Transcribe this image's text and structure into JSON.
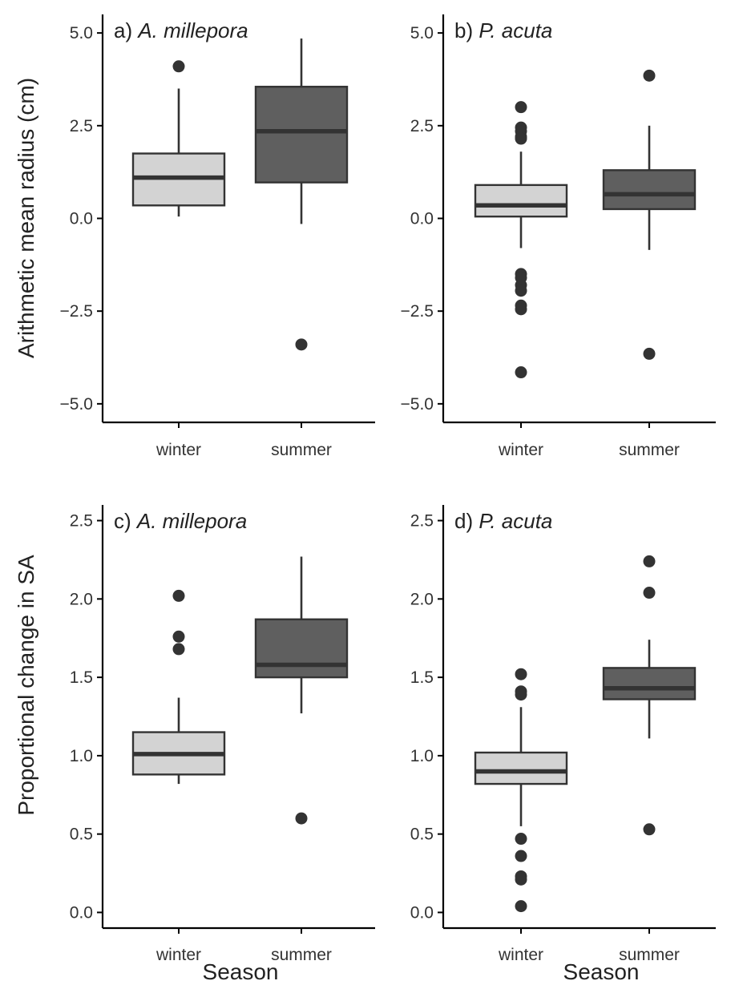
{
  "figure": {
    "ylabel_top": "Arithmetic mean radius (cm)",
    "ylabel_bottom": "Proportional change in SA",
    "xlabel": "Season"
  },
  "colors": {
    "winter": "#d3d3d3",
    "summer": "#5f5f5f"
  },
  "chart_data": [
    {
      "type": "box",
      "panel_label": "a)",
      "species": "A. millepora",
      "categories": [
        "winter",
        "summer"
      ],
      "ylim": [
        -5.5,
        5.5
      ],
      "yticks": [
        5.0,
        2.5,
        0.0,
        -2.5,
        -5.0
      ],
      "tick_labels": [
        "5.0",
        "2.5",
        "0.0",
        "−2.5",
        "−5.0"
      ],
      "boxes": [
        {
          "category": "winter",
          "whisker_low": 0.05,
          "q1": 0.35,
          "median": 1.1,
          "q3": 1.75,
          "whisker_high": 3.5,
          "outliers": [
            4.1
          ]
        },
        {
          "category": "summer",
          "whisker_low": -0.15,
          "q1": 0.97,
          "median": 2.35,
          "q3": 3.55,
          "whisker_high": 4.85,
          "outliers": [
            -3.4
          ]
        }
      ]
    },
    {
      "type": "box",
      "panel_label": "b)",
      "species": "P. acuta",
      "categories": [
        "winter",
        "summer"
      ],
      "ylim": [
        -5.5,
        5.5
      ],
      "yticks": [
        5.0,
        2.5,
        0.0,
        -2.5,
        -5.0
      ],
      "tick_labels": [
        "5.0",
        "2.5",
        "0.0",
        "−2.5",
        "−5.0"
      ],
      "boxes": [
        {
          "category": "winter",
          "whisker_low": -0.8,
          "q1": 0.05,
          "median": 0.35,
          "q3": 0.9,
          "whisker_high": 1.8,
          "outliers": [
            3.0,
            2.45,
            2.35,
            2.2,
            2.15,
            -1.5,
            -1.6,
            -1.8,
            -1.95,
            -2.35,
            -2.45,
            -4.15
          ]
        },
        {
          "category": "summer",
          "whisker_low": -0.85,
          "q1": 0.25,
          "median": 0.65,
          "q3": 1.3,
          "whisker_high": 2.5,
          "outliers": [
            3.85,
            -3.65
          ]
        }
      ]
    },
    {
      "type": "box",
      "panel_label": "c)",
      "species": "A. millepora",
      "categories": [
        "winter",
        "summer"
      ],
      "ylim": [
        -0.1,
        2.6
      ],
      "yticks": [
        2.5,
        2.0,
        1.5,
        1.0,
        0.5,
        0.0
      ],
      "tick_labels": [
        "2.5",
        "2.0",
        "1.5",
        "1.0",
        "0.5",
        "0.0"
      ],
      "boxes": [
        {
          "category": "winter",
          "whisker_low": 0.82,
          "q1": 0.88,
          "median": 1.01,
          "q3": 1.15,
          "whisker_high": 1.37,
          "outliers": [
            2.02,
            1.76,
            1.68
          ]
        },
        {
          "category": "summer",
          "whisker_low": 1.27,
          "q1": 1.5,
          "median": 1.58,
          "q3": 1.87,
          "whisker_high": 2.27,
          "outliers": [
            0.6
          ]
        }
      ]
    },
    {
      "type": "box",
      "panel_label": "d)",
      "species": "P. acuta",
      "categories": [
        "winter",
        "summer"
      ],
      "ylim": [
        -0.1,
        2.6
      ],
      "yticks": [
        2.5,
        2.0,
        1.5,
        1.0,
        0.5,
        0.0
      ],
      "tick_labels": [
        "2.5",
        "2.0",
        "1.5",
        "1.0",
        "0.5",
        "0.0"
      ],
      "boxes": [
        {
          "category": "winter",
          "whisker_low": 0.55,
          "q1": 0.82,
          "median": 0.9,
          "q3": 1.02,
          "whisker_high": 1.31,
          "outliers": [
            1.52,
            1.41,
            1.39,
            0.47,
            0.36,
            0.23,
            0.21,
            0.04
          ]
        },
        {
          "category": "summer",
          "whisker_low": 1.11,
          "q1": 1.36,
          "median": 1.43,
          "q3": 1.56,
          "whisker_high": 1.74,
          "outliers": [
            2.24,
            2.04,
            0.53
          ]
        }
      ]
    }
  ]
}
